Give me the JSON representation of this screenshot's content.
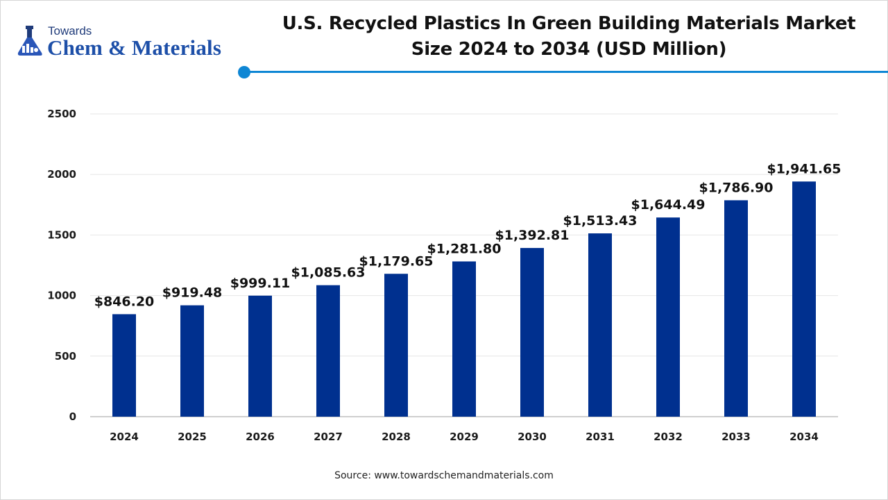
{
  "brand": {
    "top_word": "Towards",
    "name": "Chem & Materials",
    "color": "#1d4fa8"
  },
  "accent_color": "#0e86d4",
  "source_text": "Source: www.towardschemandmaterials.com",
  "chart_data": {
    "type": "bar",
    "title_lines": [
      "U.S. Recycled Plastics In Green Building Materials Market",
      "Size 2024 to 2034 (USD Million)"
    ],
    "categories": [
      "2024",
      "2025",
      "2026",
      "2027",
      "2028",
      "2029",
      "2030",
      "2031",
      "2032",
      "2033",
      "2034"
    ],
    "values": [
      846.2,
      919.48,
      999.11,
      1085.63,
      1179.65,
      1281.8,
      1392.81,
      1513.43,
      1644.49,
      1786.9,
      1941.65
    ],
    "value_labels": [
      "$846.20",
      "$919.48",
      "$999.11",
      "$1,085.63",
      "$1,179.65",
      "$1,281.80",
      "$1,392.81",
      "$1,513.43",
      "$1,644.49",
      "$1,786.90",
      "$1,941.65"
    ],
    "ylim": [
      0,
      2500
    ],
    "yticks": [
      0,
      500,
      1000,
      1500,
      2000,
      2500
    ],
    "xlabel": "",
    "ylabel": "",
    "bar_color": "#00308f",
    "grid": true,
    "legend": "none"
  }
}
